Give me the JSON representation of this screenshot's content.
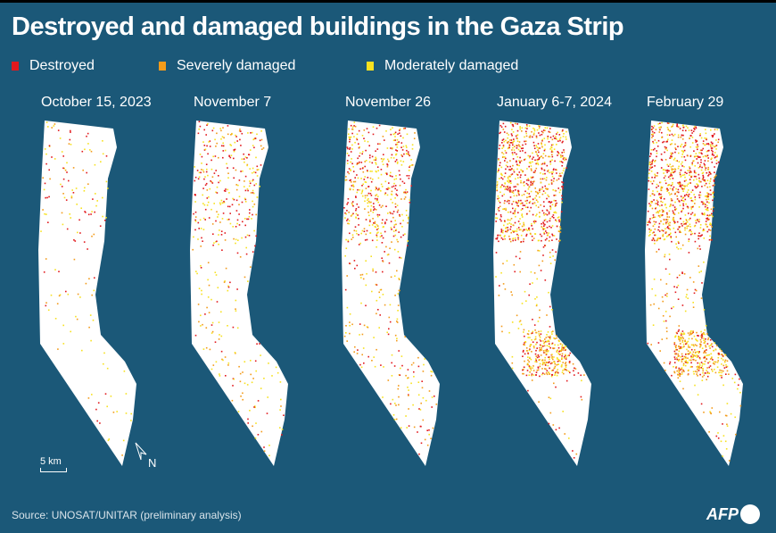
{
  "title": "Destroyed and damaged buildings in the Gaza Strip",
  "legend": [
    {
      "label": "Destroyed",
      "color": "#e2191d"
    },
    {
      "label": "Severely damaged",
      "color": "#f39b1a"
    },
    {
      "label": "Moderately damaged",
      "color": "#f7e11f"
    }
  ],
  "maps": [
    {
      "date": "October 15, 2023"
    },
    {
      "date": "November 7"
    },
    {
      "date": "November 26"
    },
    {
      "date": "January 6-7, 2024"
    },
    {
      "date": "February 29"
    }
  ],
  "scale_label": "5 km",
  "north_label": "N",
  "source": "Source: UNOSAT/UNITAR (preliminary analysis)",
  "logo": "AFP"
}
